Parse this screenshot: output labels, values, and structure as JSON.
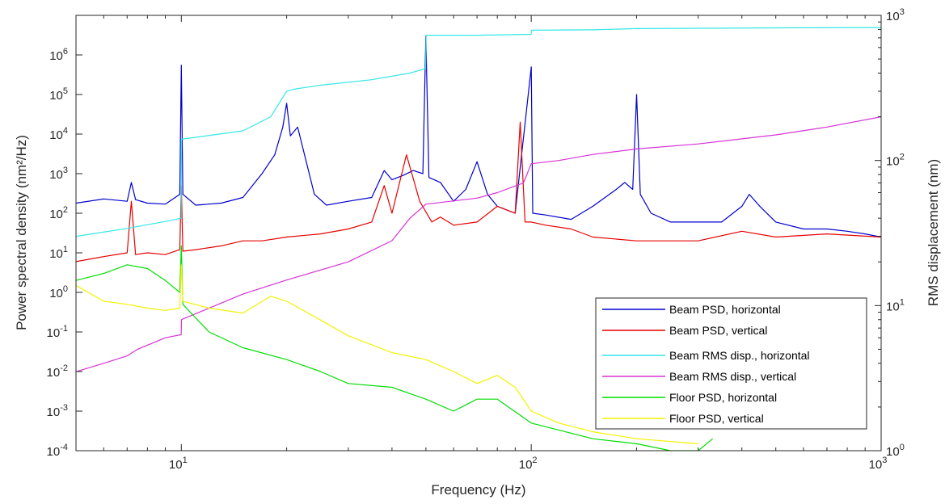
{
  "chart_data": {
    "type": "line",
    "xlabel": "Frequency (Hz)",
    "ylabel": "Power spectral density (nm²/Hz)",
    "y2label": "RMS displacement (nm)",
    "xscale": "log",
    "yscale": "log",
    "y2scale": "log",
    "xlim": [
      5,
      1000
    ],
    "ylim": [
      0.0001,
      10000000
    ],
    "y2lim": [
      1,
      1000
    ],
    "x_ticks": [
      {
        "base": "10",
        "exp": "1",
        "value": 10
      },
      {
        "base": "10",
        "exp": "2",
        "value": 100
      },
      {
        "base": "10",
        "exp": "3",
        "value": 1000
      }
    ],
    "y_ticks": [
      {
        "base": "10",
        "exp": "-4",
        "value": 0.0001
      },
      {
        "base": "10",
        "exp": "-3",
        "value": 0.001
      },
      {
        "base": "10",
        "exp": "-2",
        "value": 0.01
      },
      {
        "base": "10",
        "exp": "-1",
        "value": 0.1
      },
      {
        "base": "10",
        "exp": "0",
        "value": 1
      },
      {
        "base": "10",
        "exp": "1",
        "value": 10
      },
      {
        "base": "10",
        "exp": "2",
        "value": 100
      },
      {
        "base": "10",
        "exp": "3",
        "value": 1000
      },
      {
        "base": "10",
        "exp": "4",
        "value": 10000
      },
      {
        "base": "10",
        "exp": "5",
        "value": 100000
      },
      {
        "base": "10",
        "exp": "6",
        "value": 1000000
      }
    ],
    "y2_ticks": [
      {
        "base": "10",
        "exp": "0",
        "value": 1
      },
      {
        "base": "10",
        "exp": "1",
        "value": 10
      },
      {
        "base": "10",
        "exp": "2",
        "value": 100
      },
      {
        "base": "10",
        "exp": "3",
        "value": 1000
      }
    ],
    "grid": false,
    "legend_position": "bottom-right",
    "legend": [
      {
        "label": "Beam PSD, horizontal",
        "color": "#0000CC"
      },
      {
        "label": "Beam PSD, vertical",
        "color": "#E60000"
      },
      {
        "label": "Beam RMS disp., horizontal",
        "color": "#33E6E6"
      },
      {
        "label": "Beam RMS disp., vertical",
        "color": "#D633D6"
      },
      {
        "label": "Floor PSD, horizontal",
        "color": "#00DD00"
      },
      {
        "label": "Floor PSD, vertical",
        "color": "#F2F200"
      }
    ],
    "series": [
      {
        "name": "Beam PSD, horizontal",
        "color": "#0000CC",
        "axis": "left",
        "x": [
          5,
          6,
          7,
          7.2,
          7.4,
          8,
          9,
          9.9,
          10,
          10.1,
          11,
          13,
          15,
          17,
          18.5,
          19.5,
          20,
          20.5,
          21.5,
          22.5,
          24,
          26,
          30,
          35,
          38,
          40,
          43,
          46,
          49,
          50,
          51,
          55,
          60,
          65,
          70,
          75,
          80,
          90,
          100,
          101,
          110,
          130,
          150,
          175,
          185,
          195,
          200,
          205,
          220,
          250,
          300,
          350,
          400,
          420,
          450,
          500,
          600,
          700,
          800,
          900,
          1000
        ],
        "y": [
          180,
          230,
          200,
          600,
          220,
          180,
          170,
          300,
          550000,
          300,
          160,
          180,
          250,
          1000,
          3000,
          15000,
          60000,
          9000,
          15000,
          3000,
          300,
          160,
          200,
          250,
          1200,
          700,
          900,
          1200,
          1000,
          3000000,
          800,
          600,
          200,
          400,
          2000,
          300,
          150,
          100,
          500000,
          100,
          90,
          70,
          150,
          400,
          600,
          400,
          100000,
          300,
          100,
          60,
          60,
          60,
          150,
          300,
          150,
          60,
          40,
          40,
          35,
          30,
          25
        ]
      },
      {
        "name": "Beam PSD, vertical",
        "color": "#E60000",
        "axis": "left",
        "x": [
          5,
          6,
          7,
          7.2,
          7.4,
          8,
          9,
          9.9,
          10,
          10.1,
          11,
          13,
          15,
          17,
          20,
          25,
          30,
          35,
          38,
          40,
          44,
          48,
          52,
          55,
          60,
          70,
          80,
          90,
          93,
          96,
          100,
          110,
          130,
          150,
          200,
          250,
          300,
          400,
          500,
          700,
          1000
        ],
        "y": [
          6,
          8,
          10,
          200,
          9,
          10,
          9,
          12,
          500,
          11,
          12,
          15,
          20,
          20,
          25,
          30,
          40,
          60,
          500,
          100,
          3000,
          200,
          60,
          80,
          50,
          60,
          150,
          100,
          20000,
          60,
          60,
          50,
          40,
          25,
          20,
          20,
          20,
          35,
          25,
          30,
          25
        ]
      },
      {
        "name": "Beam RMS disp., horizontal",
        "color": "#33E6E6",
        "axis": "right",
        "x": [
          5,
          7,
          9,
          9.99,
          10.01,
          15,
          18,
          20,
          21,
          25,
          35,
          45,
          49.9,
          50.1,
          70,
          99.9,
          100.1,
          150,
          200,
          300,
          500,
          1000
        ],
        "y2": [
          30,
          34,
          38,
          40,
          140,
          160,
          200,
          300,
          310,
          330,
          360,
          400,
          430,
          730,
          730,
          740,
          790,
          795,
          810,
          815,
          820,
          825
        ]
      },
      {
        "name": "Beam RMS disp., vertical",
        "color": "#D633D6",
        "axis": "right",
        "x": [
          5,
          6,
          7,
          7.5,
          9,
          9.99,
          10.01,
          15,
          20,
          30,
          40,
          45,
          50,
          70,
          80,
          95,
          100,
          120,
          150,
          200,
          300,
          500,
          700,
          1000
        ],
        "y2": [
          3.5,
          4,
          4.5,
          5,
          6,
          6.3,
          8,
          12,
          15,
          20,
          28,
          40,
          50,
          55,
          60,
          70,
          95,
          100,
          110,
          120,
          130,
          150,
          170,
          200
        ]
      },
      {
        "name": "Floor PSD, horizontal",
        "color": "#00DD00",
        "axis": "left",
        "x": [
          5,
          6,
          7,
          8,
          9,
          9.9,
          10,
          10.1,
          12,
          15,
          20,
          25,
          30,
          40,
          50,
          60,
          70,
          80,
          100,
          150,
          200,
          250,
          300,
          330
        ],
        "y": [
          2,
          3,
          5,
          4,
          2,
          1,
          15,
          0.5,
          0.1,
          0.04,
          0.02,
          0.01,
          0.005,
          0.004,
          0.002,
          0.001,
          0.002,
          0.002,
          0.0005,
          0.0002,
          0.00015,
          0.0001,
          0.0001,
          0.0002
        ]
      },
      {
        "name": "Floor PSD, vertical",
        "color": "#F2F200",
        "axis": "left",
        "x": [
          5,
          6,
          7,
          8,
          9,
          9.9,
          10,
          10.1,
          12,
          15,
          18,
          20,
          25,
          30,
          40,
          50,
          60,
          70,
          80,
          90,
          100,
          120,
          150,
          200,
          300
        ],
        "y": [
          1.5,
          0.6,
          0.5,
          0.4,
          0.35,
          0.4,
          5,
          0.6,
          0.4,
          0.3,
          0.8,
          0.6,
          0.2,
          0.08,
          0.03,
          0.02,
          0.01,
          0.005,
          0.008,
          0.004,
          0.001,
          0.0005,
          0.0003,
          0.0002,
          0.00015
        ]
      }
    ]
  }
}
